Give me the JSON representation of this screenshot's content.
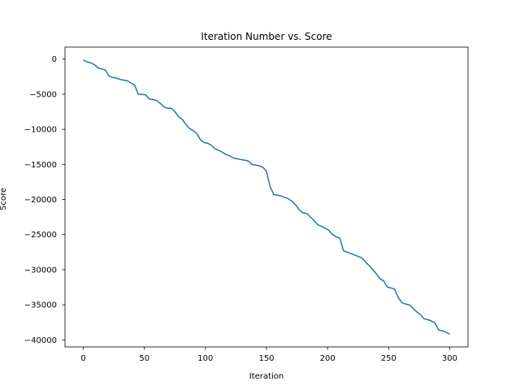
{
  "chart_data": {
    "type": "line",
    "title": "Iteration Number vs. Score",
    "xlabel": "Iteration",
    "ylabel": "Score",
    "xlim": [
      -15,
      315
    ],
    "ylim": [
      -41000,
      1700
    ],
    "xticks": [
      0,
      50,
      100,
      150,
      200,
      250,
      300
    ],
    "yticks": [
      0,
      -5000,
      -10000,
      -15000,
      -20000,
      -25000,
      -30000,
      -35000,
      -40000
    ],
    "grid": false,
    "legend": "none",
    "series": [
      {
        "color": "#1f77b4",
        "x": [
          0,
          3,
          6,
          9,
          12,
          15,
          18,
          21,
          24,
          27,
          30,
          33,
          36,
          39,
          42,
          45,
          48,
          51,
          54,
          57,
          60,
          63,
          66,
          69,
          72,
          75,
          78,
          81,
          84,
          87,
          90,
          93,
          96,
          99,
          102,
          105,
          108,
          111,
          114,
          117,
          120,
          123,
          126,
          129,
          132,
          135,
          138,
          141,
          144,
          147,
          150,
          153,
          156,
          159,
          162,
          165,
          168,
          171,
          174,
          177,
          180,
          183,
          186,
          189,
          192,
          195,
          198,
          201,
          204,
          207,
          210,
          213,
          216,
          219,
          222,
          225,
          228,
          231,
          234,
          237,
          240,
          243,
          246,
          249,
          252,
          255,
          258,
          261,
          264,
          267,
          270,
          273,
          276,
          279,
          282,
          285,
          288,
          291,
          294,
          297,
          300
        ],
        "y": [
          -100,
          -400,
          -550,
          -800,
          -1250,
          -1400,
          -1550,
          -2400,
          -2600,
          -2700,
          -2900,
          -3000,
          -3100,
          -3400,
          -3700,
          -5000,
          -5050,
          -5100,
          -5700,
          -5750,
          -5900,
          -6300,
          -6800,
          -7000,
          -7000,
          -7500,
          -8200,
          -8600,
          -9300,
          -9900,
          -10200,
          -10600,
          -11500,
          -11900,
          -12000,
          -12300,
          -12800,
          -13000,
          -13300,
          -13600,
          -13800,
          -14100,
          -14200,
          -14300,
          -14400,
          -14500,
          -15000,
          -15100,
          -15200,
          -15400,
          -16000,
          -18200,
          -19300,
          -19400,
          -19500,
          -19700,
          -19900,
          -20300,
          -20800,
          -21500,
          -21900,
          -22000,
          -22500,
          -23000,
          -23600,
          -23800,
          -24100,
          -24400,
          -25000,
          -25300,
          -25500,
          -27300,
          -27500,
          -27700,
          -27900,
          -28100,
          -28300,
          -28900,
          -29400,
          -30000,
          -30600,
          -31300,
          -31600,
          -32500,
          -32600,
          -32800,
          -34000,
          -34700,
          -34900,
          -35000,
          -35500,
          -36000,
          -36400,
          -37000,
          -37100,
          -37300,
          -37600,
          -38600,
          -38700,
          -38900,
          -39200
        ]
      }
    ]
  }
}
